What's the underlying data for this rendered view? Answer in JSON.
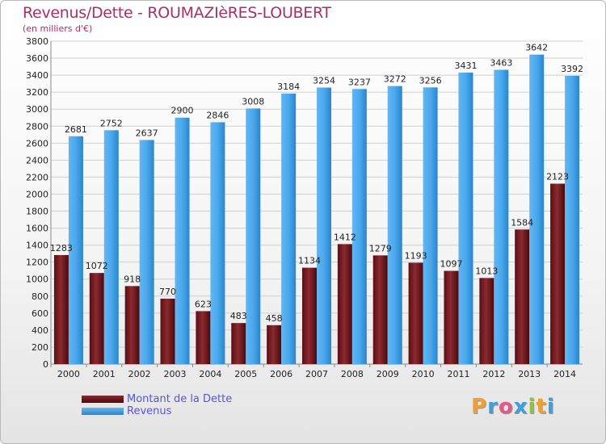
{
  "title": "Revenus/Dette - ROUMAZIèRES-LOUBERT",
  "subtitle": "(en milliers d'€)",
  "logo": {
    "letters": [
      "P",
      "r",
      "o",
      "x",
      "i",
      "t",
      "i"
    ],
    "colors": [
      "#f0a030",
      "#3c9fe0",
      "#e05a8a",
      "#3c9fe0",
      "#90c040",
      "#f0a030",
      "#3c9fe0"
    ]
  },
  "chart_data": {
    "type": "bar",
    "categories": [
      "2000",
      "2001",
      "2002",
      "2003",
      "2004",
      "2005",
      "2006",
      "2007",
      "2008",
      "2009",
      "2010",
      "2011",
      "2012",
      "2013",
      "2014"
    ],
    "series": [
      {
        "name": "Montant de la Dette",
        "color": "#7a1a20",
        "values": [
          1283,
          1072,
          918,
          770,
          623,
          483,
          458,
          1134,
          1412,
          1279,
          1193,
          1097,
          1013,
          1584,
          2123
        ]
      },
      {
        "name": "Revenus",
        "color": "#3f9fe2",
        "values": [
          2681,
          2752,
          2637,
          2900,
          2846,
          3008,
          3184,
          3254,
          3237,
          3272,
          3256,
          3431,
          3463,
          3642,
          3392
        ]
      }
    ],
    "yticks": [
      "0",
      "200",
      "400",
      "600",
      "800",
      "1000",
      "1200",
      "1400",
      "1600",
      "1800",
      "2000",
      "2200",
      "2400",
      "2600",
      "2800",
      "3000",
      "3200",
      "3400",
      "3600",
      "3800"
    ],
    "ylim": [
      0,
      3800
    ],
    "grid": true,
    "legend_position": "bottom-left"
  }
}
